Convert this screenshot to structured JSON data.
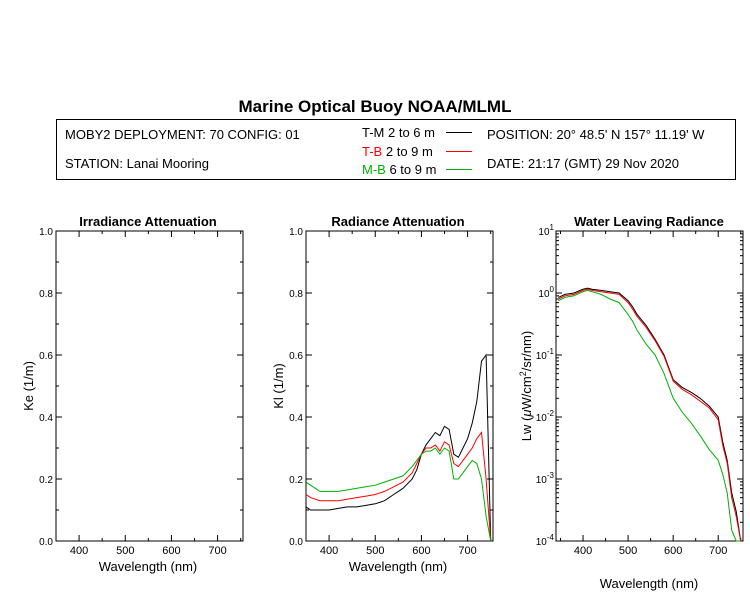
{
  "title": "Marine Optical Buoy NOAA/MLML",
  "info": {
    "deployment": "MOBY2 DEPLOYMENT: 70 CONFIG: 01",
    "station": "STATION: Lanai Mooring",
    "position": "POSITION: 20° 48.5' N   157° 11.19' W",
    "date": "DATE: 21:17 (GMT) 29 Nov 2020",
    "legend": [
      {
        "code": "T-M",
        "range": "2 to 6  m",
        "color": "#000000"
      },
      {
        "code": "T-B",
        "range": "2 to 9  m",
        "color": "#ff0000"
      },
      {
        "code": "M-B",
        "range": "6 to 9  m",
        "color": "#00b000"
      }
    ]
  },
  "chart_data": [
    {
      "type": "line",
      "title": "Irradiance Attenuation",
      "xlabel": "Wavelength (nm)",
      "ylabel": "Ke  (1/m)",
      "xlim": [
        350,
        755
      ],
      "ylim": [
        0,
        1
      ],
      "xticks": [
        "400",
        "500",
        "600",
        "700"
      ],
      "yticks": [
        "0.0",
        "0.2",
        "0.4",
        "0.6",
        "0.8",
        "1.0"
      ],
      "series": []
    },
    {
      "type": "line",
      "title": "Radiance Attenuation",
      "xlabel": "Wavelength (nm)",
      "ylabel": "Kl  (1/m)",
      "xlim": [
        350,
        755
      ],
      "ylim": [
        0,
        1
      ],
      "xticks": [
        "400",
        "500",
        "600",
        "700"
      ],
      "yticks": [
        "0.0",
        "0.2",
        "0.4",
        "0.6",
        "0.8",
        "1.0"
      ],
      "series": [
        {
          "color": "#000000",
          "x": [
            350,
            360,
            380,
            400,
            420,
            440,
            460,
            480,
            500,
            520,
            540,
            560,
            580,
            590,
            600,
            610,
            620,
            630,
            640,
            650,
            660,
            670,
            680,
            690,
            700,
            710,
            720,
            730,
            740,
            750
          ],
          "y": [
            0.11,
            0.1,
            0.1,
            0.1,
            0.105,
            0.11,
            0.11,
            0.115,
            0.12,
            0.13,
            0.15,
            0.17,
            0.2,
            0.23,
            0.28,
            0.31,
            0.33,
            0.35,
            0.34,
            0.37,
            0.36,
            0.28,
            0.27,
            0.3,
            0.33,
            0.38,
            0.45,
            0.58,
            0.6,
            0.0
          ]
        },
        {
          "color": "#ff0000",
          "x": [
            350,
            360,
            380,
            400,
            420,
            440,
            460,
            480,
            500,
            520,
            540,
            560,
            580,
            590,
            600,
            610,
            620,
            630,
            640,
            650,
            660,
            670,
            680,
            690,
            700,
            710,
            720,
            730,
            740,
            750
          ],
          "y": [
            0.15,
            0.14,
            0.13,
            0.13,
            0.13,
            0.135,
            0.14,
            0.145,
            0.15,
            0.16,
            0.175,
            0.19,
            0.22,
            0.25,
            0.28,
            0.3,
            0.3,
            0.31,
            0.29,
            0.32,
            0.31,
            0.25,
            0.24,
            0.26,
            0.28,
            0.3,
            0.33,
            0.35,
            0.2,
            0.0
          ]
        },
        {
          "color": "#00b000",
          "x": [
            350,
            360,
            380,
            400,
            420,
            440,
            460,
            480,
            500,
            520,
            540,
            560,
            580,
            590,
            600,
            610,
            620,
            630,
            640,
            650,
            660,
            670,
            680,
            690,
            700,
            710,
            720,
            730,
            740,
            750
          ],
          "y": [
            0.19,
            0.18,
            0.16,
            0.16,
            0.16,
            0.165,
            0.17,
            0.175,
            0.18,
            0.19,
            0.2,
            0.21,
            0.24,
            0.26,
            0.28,
            0.29,
            0.29,
            0.3,
            0.28,
            0.3,
            0.29,
            0.2,
            0.2,
            0.22,
            0.24,
            0.26,
            0.25,
            0.2,
            0.08,
            0.0
          ]
        }
      ]
    },
    {
      "type": "line",
      "title": "Water Leaving Radiance",
      "xlabel": "Wavelength (nm)",
      "ylabel_parts": [
        "Lw  (",
        "μ",
        "W/cm",
        "2",
        "/sr/nm)"
      ],
      "xlim": [
        340,
        755
      ],
      "ylim": [
        0.0001,
        10
      ],
      "yscale": "log",
      "xticks": [
        "400",
        "500",
        "600",
        "700"
      ],
      "ytick_labels": [
        {
          "base": "10",
          "exp": "1"
        },
        {
          "base": "10",
          "exp": "0"
        },
        {
          "base": "10",
          "exp": "-1"
        },
        {
          "base": "10",
          "exp": "-2"
        },
        {
          "base": "10",
          "exp": "-3"
        },
        {
          "base": "10",
          "exp": "-4"
        }
      ],
      "series": [
        {
          "color": "#000000",
          "x": [
            345,
            360,
            380,
            400,
            410,
            420,
            440,
            460,
            480,
            500,
            510,
            520,
            540,
            560,
            580,
            600,
            620,
            640,
            660,
            680,
            700,
            710,
            720,
            730,
            740,
            750
          ],
          "y": [
            0.85,
            0.95,
            1.0,
            1.15,
            1.2,
            1.15,
            1.1,
            1.05,
            1.0,
            0.75,
            0.6,
            0.45,
            0.3,
            0.18,
            0.1,
            0.04,
            0.03,
            0.025,
            0.02,
            0.015,
            0.01,
            0.004,
            0.002,
            0.0006,
            0.0003,
            0.0001
          ]
        },
        {
          "color": "#ff0000",
          "x": [
            345,
            360,
            380,
            400,
            410,
            420,
            440,
            460,
            480,
            500,
            510,
            520,
            540,
            560,
            580,
            600,
            620,
            640,
            660,
            680,
            700,
            710,
            720,
            730,
            740,
            750
          ],
          "y": [
            0.8,
            0.9,
            0.95,
            1.1,
            1.15,
            1.1,
            1.05,
            1.0,
            0.95,
            0.7,
            0.55,
            0.42,
            0.28,
            0.17,
            0.095,
            0.038,
            0.028,
            0.023,
            0.018,
            0.014,
            0.009,
            0.0035,
            0.0018,
            0.0005,
            0.00025,
            0.0001
          ]
        },
        {
          "color": "#00b000",
          "x": [
            345,
            360,
            380,
            400,
            410,
            420,
            440,
            460,
            480,
            500,
            510,
            520,
            540,
            560,
            580,
            600,
            620,
            640,
            660,
            680,
            700,
            710,
            720,
            730,
            740,
            750
          ],
          "y": [
            0.75,
            0.85,
            0.9,
            1.05,
            1.1,
            1.05,
            0.95,
            0.8,
            0.7,
            0.45,
            0.35,
            0.25,
            0.15,
            0.1,
            0.05,
            0.02,
            0.012,
            0.008,
            0.005,
            0.003,
            0.002,
            0.0012,
            0.0006,
            0.00015,
            0.0001,
            0.0001
          ]
        }
      ]
    }
  ]
}
